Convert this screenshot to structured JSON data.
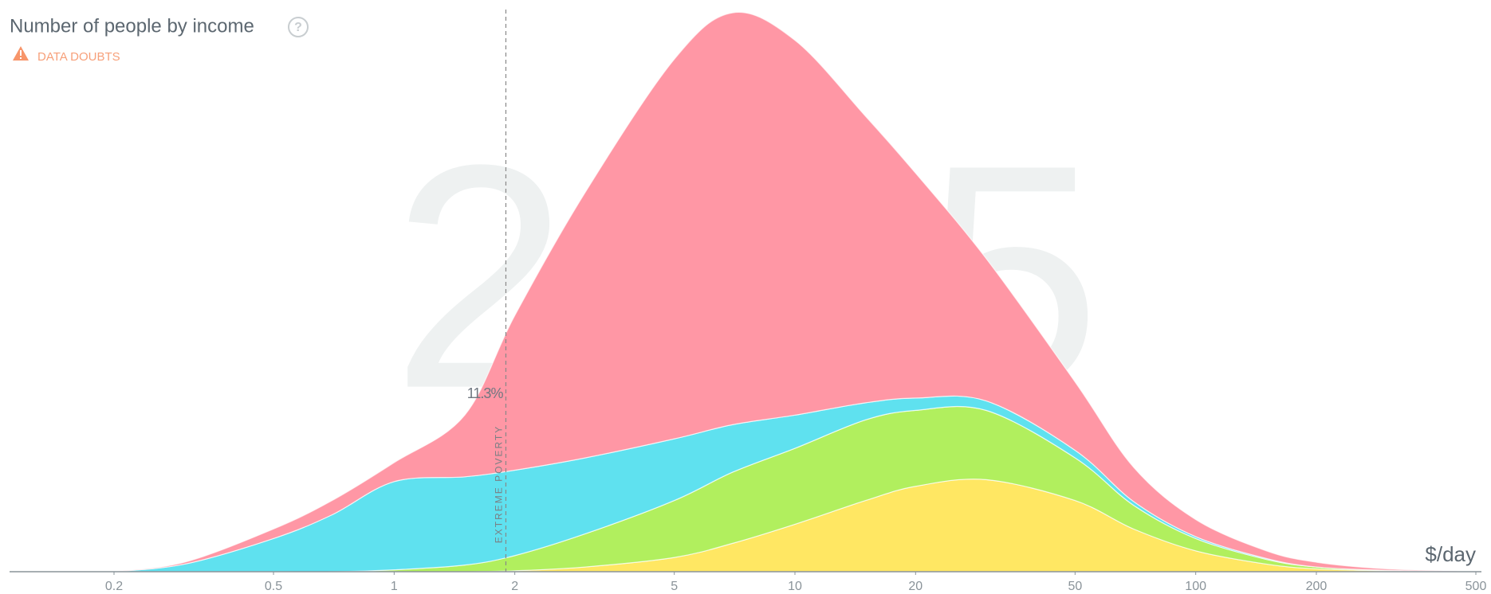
{
  "chart_data": {
    "type": "mountain",
    "title": "Number of people by income",
    "warning": "DATA DOUBTS",
    "year": "2015",
    "x_unit": "$/day",
    "poverty_label": "EXTREME POVERTY",
    "poverty_line": 1.9,
    "poverty_share": {
      "value": 11.3,
      "label": "11.3%"
    },
    "log_x": true,
    "xlim": [
      0.2,
      500
    ],
    "xticks": [
      0.2,
      0.5,
      1,
      2,
      5,
      10,
      20,
      50,
      100,
      200,
      500
    ],
    "x": [
      0.2,
      0.3,
      0.5,
      0.7,
      1,
      1.5,
      2,
      3,
      5,
      7,
      10,
      15,
      20,
      30,
      50,
      70,
      100,
      150,
      200,
      300,
      500
    ],
    "series": [
      {
        "color": "#ffe763",
        "values": [
          0,
          0,
          0,
          0,
          0,
          0,
          1,
          5,
          15,
          30,
          50,
          75,
          90,
          97,
          75,
          45,
          22,
          8,
          3,
          1,
          0
        ]
      },
      {
        "color": "#b1ef5e",
        "values": [
          0,
          0,
          0,
          0,
          2,
          7,
          16,
          35,
          60,
          75,
          80,
          85,
          80,
          73,
          45,
          25,
          13,
          5,
          2,
          0.5,
          0
        ]
      },
      {
        "color": "#5fe1ef",
        "values": [
          0,
          8,
          35,
          60,
          93,
          93,
          90,
          80,
          65,
          50,
          35,
          18,
          13,
          10,
          8,
          4,
          2,
          1,
          0,
          0,
          0
        ]
      },
      {
        "color": "#ff97a5",
        "values": [
          0,
          2,
          10,
          15,
          20,
          65,
          163,
          280,
          400,
          434,
          395,
          302,
          237,
          150,
          72,
          36,
          18,
          8,
          5,
          1.5,
          0
        ]
      }
    ]
  }
}
